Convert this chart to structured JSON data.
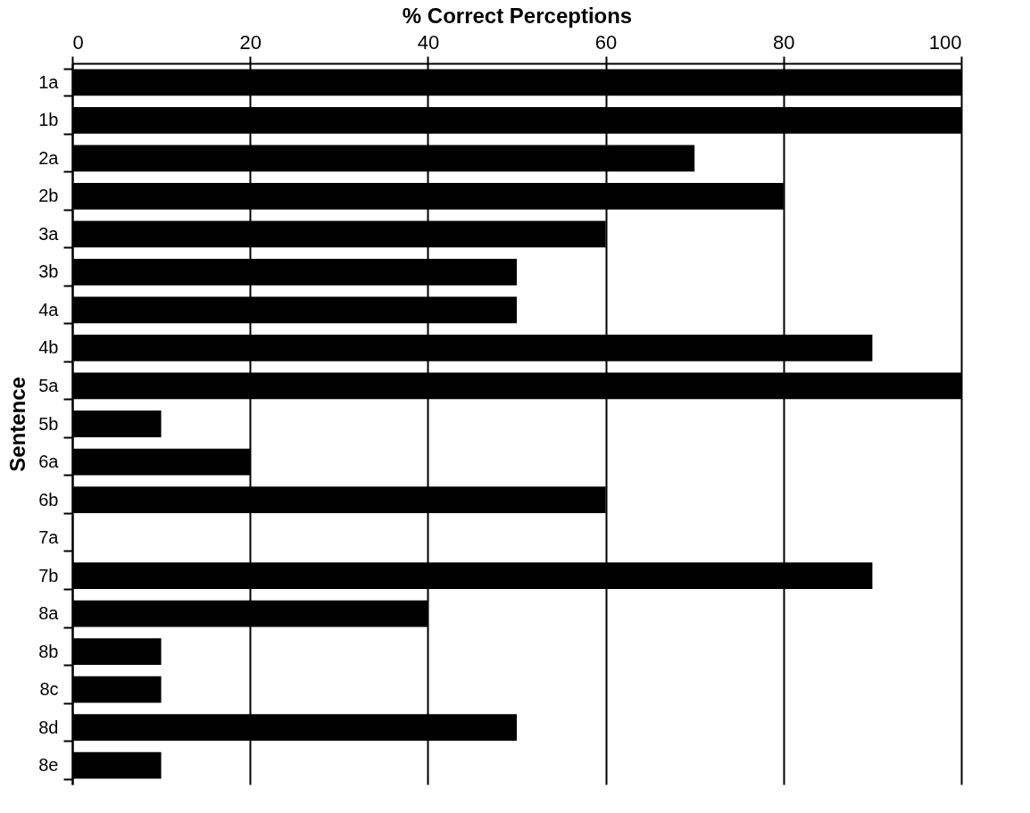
{
  "chart_data": {
    "type": "bar",
    "orientation": "horizontal",
    "xlabel": "% Correct Perceptions",
    "ylabel": "Sentence",
    "categories": [
      "1a",
      "1b",
      "2a",
      "2b",
      "3a",
      "3b",
      "4a",
      "4b",
      "5a",
      "5b",
      "6a",
      "6b",
      "7a",
      "7b",
      "8a",
      "8b",
      "8c",
      "8d",
      "8e"
    ],
    "values": [
      100,
      100,
      70,
      80,
      60,
      50,
      50,
      90,
      100,
      10,
      20,
      60,
      0,
      90,
      40,
      10,
      10,
      50,
      10
    ],
    "color": "#000000",
    "xlim": [
      0,
      100
    ],
    "xticks": [
      0,
      20,
      40,
      60,
      80,
      100
    ],
    "grid": "x"
  }
}
